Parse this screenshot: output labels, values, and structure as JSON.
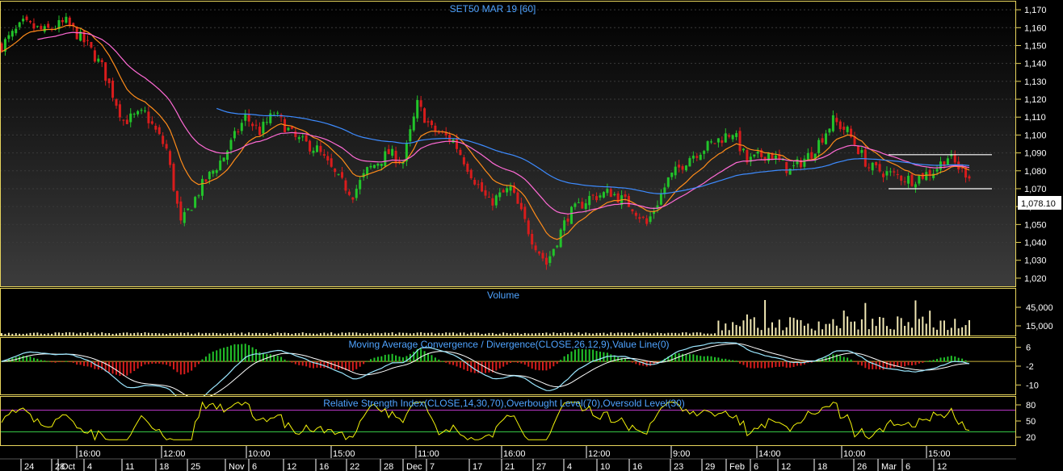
{
  "colors": {
    "up": "#22c42a",
    "down": "#d81c1c",
    "frame": "#e7d45c",
    "ma_fast": "#ff8c1a",
    "ma_mid": "#ff6ad5",
    "ma_slow": "#3d8bff",
    "macd": "#9be7ff",
    "macd_signal": "#ffffff",
    "rsi": "#f2f20a",
    "volume": "#efe6b3",
    "title": "#4fa3ff",
    "last_price_bg": "#ffffff"
  },
  "panels": {
    "price": {
      "title": "SET50 MAR 19   [60]",
      "y_ticks": [
        "1,170",
        "1,160",
        "1,150",
        "1,140",
        "1,130",
        "1,120",
        "1,110",
        "1,100",
        "1,090",
        "1,080",
        "1,070",
        "1,060",
        "1,050",
        "1,040",
        "1,030",
        "1,020"
      ],
      "last_price": "1,078.10"
    },
    "volume": {
      "title": "Volume",
      "y_ticks": [
        "45,000",
        "15,000"
      ]
    },
    "macd": {
      "title": "Moving Average Convergence / Divergence(CLOSE,26,12,9),Value Line(0)",
      "y_ticks": [
        "6",
        "-2",
        "-10"
      ]
    },
    "rsi": {
      "title": "Relative Strength Index(CLOSE,14,30,70),Overbought Level(70),Oversold Level(30)",
      "y_ticks": [
        "80",
        "50",
        "20"
      ]
    }
  },
  "x_axis": {
    "intraday_labels": [
      "16:00",
      "12:00",
      "10:00",
      "15:00",
      "11:00",
      "16:00",
      "12:00",
      "9:00",
      "14:00",
      "10:00",
      "15:00"
    ],
    "date_labels": [
      "24",
      "28",
      "Oct",
      "4",
      "11",
      "18",
      "25",
      "Nov",
      "6",
      "12",
      "16",
      "22",
      "28",
      "Dec",
      "7",
      "17",
      "21",
      "27",
      "4",
      "10",
      "16",
      "23",
      "29",
      "Feb",
      "6",
      "12",
      "18",
      "26",
      "Mar",
      "6",
      "12"
    ]
  },
  "chart_data": {
    "type": "candlestick",
    "title": "SET50 MAR 19   [60]",
    "ylim": [
      1015,
      1175
    ],
    "price_path": [
      [
        0,
        1150
      ],
      [
        3,
        1162
      ],
      [
        6,
        1158
      ],
      [
        9,
        1163
      ],
      [
        12,
        1150
      ],
      [
        14,
        1138
      ],
      [
        17,
        1108
      ],
      [
        20,
        1112
      ],
      [
        23,
        1092
      ],
      [
        25,
        1050
      ],
      [
        28,
        1072
      ],
      [
        31,
        1088
      ],
      [
        34,
        1110
      ],
      [
        36,
        1102
      ],
      [
        38,
        1112
      ],
      [
        41,
        1098
      ],
      [
        44,
        1092
      ],
      [
        47,
        1075
      ],
      [
        49,
        1067
      ],
      [
        51,
        1080
      ],
      [
        54,
        1090
      ],
      [
        56,
        1085
      ],
      [
        58,
        1117
      ],
      [
        60,
        1103
      ],
      [
        63,
        1097
      ],
      [
        66,
        1075
      ],
      [
        68,
        1062
      ],
      [
        71,
        1070
      ],
      [
        74,
        1042
      ],
      [
        76,
        1028
      ],
      [
        79,
        1055
      ],
      [
        82,
        1065
      ],
      [
        85,
        1068
      ],
      [
        88,
        1060
      ],
      [
        90,
        1050
      ],
      [
        93,
        1075
      ],
      [
        96,
        1088
      ],
      [
        99,
        1095
      ],
      [
        102,
        1102
      ],
      [
        104,
        1085
      ],
      [
        107,
        1090
      ],
      [
        110,
        1080
      ],
      [
        113,
        1090
      ],
      [
        116,
        1108
      ],
      [
        118,
        1102
      ],
      [
        121,
        1082
      ],
      [
        124,
        1078
      ],
      [
        127,
        1075
      ],
      [
        130,
        1080
      ],
      [
        132,
        1088
      ],
      [
        134,
        1080
      ],
      [
        135,
        1078.1
      ]
    ],
    "horizontal_lines": [
      1089,
      1070
    ],
    "moving_averages": {
      "fast": "orange",
      "mid": "magenta",
      "slow": "blue"
    },
    "overlays": {
      "rsi_overbought": 70,
      "rsi_oversold": 30,
      "macd_value_line": 0
    }
  }
}
